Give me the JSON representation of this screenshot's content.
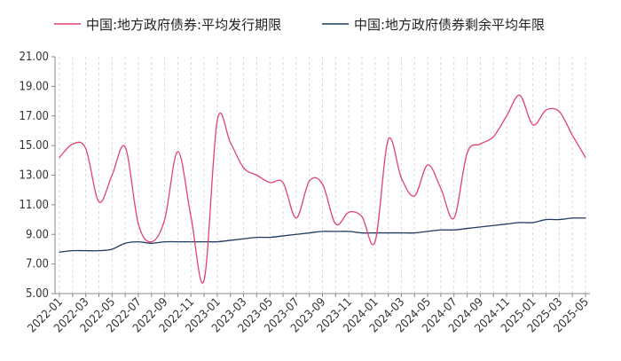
{
  "chart_data": {
    "type": "line",
    "title": "",
    "xlabel": "",
    "ylabel": "",
    "ylim": [
      5.0,
      21.0
    ],
    "yticks": [
      "5.00",
      "7.00",
      "9.00",
      "11.00",
      "13.00",
      "15.00",
      "17.00",
      "19.00",
      "21.00"
    ],
    "x_tick_labels": [
      "2022-01",
      "2022-03",
      "2022-05",
      "2022-07",
      "2022-09",
      "2022-11",
      "2023-01",
      "2023-03",
      "2023-05",
      "2023-07",
      "2023-09",
      "2023-11",
      "2024-01",
      "2024-03",
      "2024-05",
      "2024-07",
      "2024-09",
      "2024-11",
      "2025-01",
      "2025-03",
      "2025-05"
    ],
    "categories": [
      "2022-01",
      "2022-02",
      "2022-03",
      "2022-04",
      "2022-05",
      "2022-06",
      "2022-07",
      "2022-08",
      "2022-09",
      "2022-10",
      "2022-11",
      "2022-12",
      "2023-01",
      "2023-02",
      "2023-03",
      "2023-04",
      "2023-05",
      "2023-06",
      "2023-07",
      "2023-08",
      "2023-09",
      "2023-10",
      "2023-11",
      "2023-12",
      "2024-01",
      "2024-02",
      "2024-03",
      "2024-04",
      "2024-05",
      "2024-06",
      "2024-07",
      "2024-08",
      "2024-09",
      "2024-10",
      "2024-11",
      "2024-12",
      "2025-01",
      "2025-02",
      "2025-03",
      "2025-04",
      "2025-05"
    ],
    "grid": "vertical dashed",
    "legend": "top",
    "series": [
      {
        "name": "中国:地方政府债券:平均发行期限",
        "color": "#e0446e",
        "values": [
          14.2,
          15.1,
          14.8,
          11.2,
          13.0,
          14.9,
          9.7,
          8.5,
          10.0,
          14.6,
          10.2,
          5.9,
          16.7,
          15.2,
          13.5,
          13.0,
          12.5,
          12.5,
          10.1,
          12.6,
          12.4,
          9.7,
          10.5,
          10.2,
          8.5,
          15.4,
          12.8,
          11.6,
          13.7,
          12.1,
          10.1,
          14.5,
          15.1,
          15.6,
          17.0,
          18.4,
          16.4,
          17.4,
          17.3,
          15.7,
          14.2
        ]
      },
      {
        "name": "中国:地方政府债券剩余平均年限",
        "color": "#1f3a5f",
        "values": [
          7.8,
          7.9,
          7.9,
          7.9,
          8.0,
          8.4,
          8.5,
          8.4,
          8.5,
          8.5,
          8.5,
          8.5,
          8.5,
          8.6,
          8.7,
          8.8,
          8.8,
          8.9,
          9.0,
          9.1,
          9.2,
          9.2,
          9.2,
          9.1,
          9.1,
          9.1,
          9.1,
          9.1,
          9.2,
          9.3,
          9.3,
          9.4,
          9.5,
          9.6,
          9.7,
          9.8,
          9.8,
          10.0,
          10.0,
          10.1,
          10.1
        ]
      }
    ]
  }
}
